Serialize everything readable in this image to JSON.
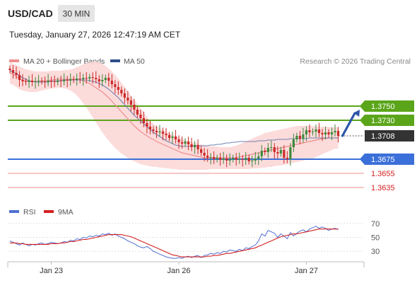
{
  "header": {
    "symbol": "USD/CAD",
    "timeframe": "30 MIN",
    "timestamp": "Tuesday, January 27, 2026 12:47:19 AM CET"
  },
  "legend": {
    "ma20_bb": "MA 20 + Bollinger Bands",
    "ma50": "MA 50",
    "copyright": "Research © 2026 Trading Central",
    "rsi": "RSI",
    "rsi_ma": "9MA"
  },
  "colors": {
    "resistance": "#5aa51a",
    "support": "#3b6fd9",
    "support_soft": "#ee8e8e",
    "bollinger_fill": "#fcd7d7",
    "ma20": "#ee8e8e",
    "ma50": "#6f82b0",
    "candle_up": "#3d8a3d",
    "candle_down": "#c92a2a",
    "arrow": "#2d57a8",
    "rsi": "#4f6fd1",
    "rsi_ma": "#d42020",
    "last_price_bg": "#333333"
  },
  "chart_data": [
    {
      "type": "candlestick",
      "title": "USD/CAD",
      "ylim": [
        1.36,
        1.38
      ],
      "x_ticks": [
        "Jan 23",
        "Jan 26",
        "Jan 27"
      ],
      "x_tick_index": [
        13,
        53,
        93
      ],
      "levels": [
        {
          "value": 1.375,
          "label": "1.3750",
          "kind": "resistance"
        },
        {
          "value": 1.373,
          "label": "1.3730",
          "kind": "resistance"
        },
        {
          "value": 1.3708,
          "label": "1.3708",
          "kind": "last"
        },
        {
          "value": 1.3675,
          "label": "1.3675",
          "kind": "support"
        },
        {
          "value": 1.3655,
          "label": "1.3655",
          "kind": "support_soft"
        },
        {
          "value": 1.3635,
          "label": "1.3635",
          "kind": "support_soft"
        }
      ],
      "closes": [
        1.3801,
        1.3797,
        1.3794,
        1.3787,
        1.3785,
        1.3784,
        1.3786,
        1.3784,
        1.3785,
        1.3786,
        1.3785,
        1.3784,
        1.3786,
        1.3785,
        1.3784,
        1.3786,
        1.3785,
        1.3787,
        1.3786,
        1.3788,
        1.3787,
        1.3789,
        1.3788,
        1.379,
        1.3789,
        1.3791,
        1.379,
        1.3788,
        1.3785,
        1.3787,
        1.379,
        1.3786,
        1.3781,
        1.3777,
        1.3773,
        1.3768,
        1.3762,
        1.3758,
        1.3752,
        1.3745,
        1.3738,
        1.3733,
        1.3726,
        1.3721,
        1.3717,
        1.3715,
        1.3713,
        1.3714,
        1.3711,
        1.3709,
        1.3705,
        1.3707,
        1.3703,
        1.3699,
        1.3697,
        1.37,
        1.3696,
        1.3692,
        1.3695,
        1.3689,
        1.3684,
        1.368,
        1.3677,
        1.3678,
        1.3675,
        1.3677,
        1.3674,
        1.3676,
        1.3673,
        1.3675,
        1.3677,
        1.3674,
        1.3675,
        1.3674,
        1.3677,
        1.3672,
        1.3673,
        1.3676,
        1.3679,
        1.3687,
        1.3685,
        1.3691,
        1.3692,
        1.3685,
        1.3683,
        1.3688,
        1.3677,
        1.3675,
        1.3692,
        1.3703,
        1.3708,
        1.3704,
        1.371,
        1.3716,
        1.3713,
        1.3714,
        1.3717,
        1.3712,
        1.371,
        1.3713,
        1.371,
        1.3713,
        1.3715,
        1.3708
      ],
      "ma50": [
        1.38,
        1.3798,
        1.3796,
        1.3793,
        1.379,
        1.3788,
        1.3786,
        1.3785,
        1.3784,
        1.3784,
        1.3784,
        1.3784,
        1.3784,
        1.3785,
        1.3785,
        1.3786,
        1.3786,
        1.3787,
        1.3787,
        1.3787,
        1.3787,
        1.3787,
        1.3787,
        1.3787,
        1.3787,
        1.3786,
        1.3785,
        1.3784,
        1.3782,
        1.378,
        1.3777,
        1.3774,
        1.377,
        1.3766,
        1.3762,
        1.3757,
        1.3752,
        1.3747,
        1.3742,
        1.3737,
        1.3733,
        1.3729,
        1.3725,
        1.3721,
        1.3717,
        1.3713,
        1.371,
        1.3707,
        1.3704,
        1.3701,
        1.3699,
        1.3697,
        1.3695,
        1.3694,
        1.3693,
        1.3693,
        1.3693,
        1.3694,
        1.3694,
        1.3694,
        1.3694,
        1.3694,
        1.3694,
        1.3695,
        1.3695,
        1.3696,
        1.3696,
        1.3697,
        1.3698,
        1.3698,
        1.3699,
        1.3699,
        1.37,
        1.37,
        1.37,
        1.37,
        1.37,
        1.37,
        1.3701,
        1.3701,
        1.3701,
        1.3702,
        1.3702,
        1.3702,
        1.3703,
        1.3703,
        1.3703,
        1.3703,
        1.3704,
        1.3704,
        1.3704,
        1.3704,
        1.3704,
        1.3704,
        1.3705,
        1.3705,
        1.3705,
        1.3705,
        1.3705,
        1.3705,
        1.3705,
        1.3705,
        1.3705,
        1.3705
      ],
      "ma20": [
        1.3797,
        1.3795,
        1.3792,
        1.3789,
        1.3787,
        1.3786,
        1.3785,
        1.3785,
        1.3785,
        1.3785,
        1.3785,
        1.3786,
        1.3786,
        1.3787,
        1.3787,
        1.3788,
        1.3788,
        1.3788,
        1.3788,
        1.3788,
        1.3788,
        1.3788,
        1.3787,
        1.3786,
        1.3784,
        1.3782,
        1.3779,
        1.3776,
        1.3773,
        1.377,
        1.3766,
        1.3762,
        1.3757,
        1.3752,
        1.3747,
        1.3742,
        1.3737,
        1.3732,
        1.3727,
        1.3722,
        1.3718,
        1.3714,
        1.3711,
        1.3708,
        1.3705,
        1.3703,
        1.37,
        1.3698,
        1.3696,
        1.3694,
        1.3692,
        1.369,
        1.3688,
        1.3686,
        1.3684,
        1.3683,
        1.3682,
        1.3681,
        1.368,
        1.3679,
        1.3678,
        1.3677,
        1.3677,
        1.3677,
        1.3677,
        1.3677,
        1.3677,
        1.3677,
        1.3677,
        1.3677,
        1.3677,
        1.3677,
        1.3678,
        1.3679,
        1.368,
        1.3681,
        1.3682,
        1.3683,
        1.3684,
        1.3685,
        1.3686,
        1.3687,
        1.3688,
        1.3689,
        1.369,
        1.3691,
        1.3692,
        1.3693,
        1.3694,
        1.3695,
        1.3696,
        1.3697,
        1.3698,
        1.3699,
        1.37,
        1.3701,
        1.3702,
        1.3703,
        1.3704,
        1.3704,
        1.3705,
        1.3705,
        1.3705,
        1.3705
      ],
      "bb_upper": [
        1.3812,
        1.381,
        1.3808,
        1.3806,
        1.3804,
        1.3802,
        1.3801,
        1.38,
        1.3799,
        1.3799,
        1.3799,
        1.3799,
        1.3799,
        1.38,
        1.38,
        1.38,
        1.38,
        1.3801,
        1.3801,
        1.3802,
        1.3803,
        1.3805,
        1.3807,
        1.3809,
        1.3811,
        1.3812,
        1.3813,
        1.3813,
        1.3812,
        1.381,
        1.3807,
        1.3803,
        1.3799,
        1.3794,
        1.3789,
        1.3783,
        1.3777,
        1.3771,
        1.3765,
        1.3759,
        1.3753,
        1.3747,
        1.3741,
        1.3735,
        1.3729,
        1.3725,
        1.3722,
        1.3719,
        1.3716,
        1.3714,
        1.3712,
        1.371,
        1.3708,
        1.3706,
        1.3704,
        1.3702,
        1.37,
        1.3699,
        1.3698,
        1.3697,
        1.3696,
        1.3695,
        1.3694,
        1.3693,
        1.3693,
        1.3693,
        1.3692,
        1.3692,
        1.3692,
        1.3692,
        1.3693,
        1.3694,
        1.3696,
        1.3698,
        1.37,
        1.3702,
        1.3704,
        1.3706,
        1.3708,
        1.371,
        1.3712,
        1.3713,
        1.3714,
        1.3715,
        1.3716,
        1.3717,
        1.3718,
        1.3719,
        1.372,
        1.3721,
        1.3722,
        1.3722,
        1.3722,
        1.3722,
        1.3722,
        1.3722,
        1.3721,
        1.3721,
        1.3721,
        1.3721,
        1.3721,
        1.372,
        1.372,
        1.372
      ],
      "bb_lower": [
        1.3782,
        1.378,
        1.3777,
        1.3774,
        1.3772,
        1.3771,
        1.377,
        1.377,
        1.377,
        1.3771,
        1.3772,
        1.3773,
        1.3774,
        1.3775,
        1.3775,
        1.3776,
        1.3776,
        1.3775,
        1.3774,
        1.3772,
        1.3769,
        1.3765,
        1.376,
        1.3754,
        1.3748,
        1.3741,
        1.3734,
        1.3727,
        1.372,
        1.3713,
        1.3707,
        1.3701,
        1.3696,
        1.3691,
        1.3687,
        1.3683,
        1.368,
        1.3677,
        1.3674,
        1.3672,
        1.367,
        1.3668,
        1.3667,
        1.3666,
        1.3665,
        1.3664,
        1.3664,
        1.3663,
        1.3663,
        1.3662,
        1.3662,
        1.3661,
        1.3661,
        1.366,
        1.366,
        1.366,
        1.366,
        1.366,
        1.366,
        1.366,
        1.366,
        1.366,
        1.366,
        1.3661,
        1.3661,
        1.3661,
        1.3661,
        1.3661,
        1.3661,
        1.3661,
        1.3661,
        1.3661,
        1.3661,
        1.3661,
        1.3661,
        1.3661,
        1.3662,
        1.3662,
        1.3662,
        1.3663,
        1.3663,
        1.3664,
        1.3664,
        1.3665,
        1.3666,
        1.3666,
        1.3667,
        1.3668,
        1.3669,
        1.367,
        1.3671,
        1.3672,
        1.3673,
        1.3674,
        1.3675,
        1.3676,
        1.3678,
        1.368,
        1.3682,
        1.3684,
        1.3686,
        1.3688,
        1.369,
        1.369
      ],
      "forecast_arrow": {
        "from": 1.3708,
        "to": 1.3745
      }
    },
    {
      "type": "line",
      "title": "RSI",
      "ylim": [
        15,
        80
      ],
      "y_ticks": [
        70,
        50,
        30
      ],
      "series": [
        {
          "name": "RSI",
          "values": [
            45,
            43,
            41,
            39,
            42,
            40,
            38,
            40,
            39,
            41,
            42,
            40,
            41,
            43,
            42,
            41,
            42,
            44,
            43,
            46,
            45,
            48,
            47,
            50,
            49,
            52,
            51,
            53,
            52,
            55,
            54,
            56,
            53,
            55,
            52,
            50,
            48,
            45,
            43,
            41,
            38,
            36,
            35,
            37,
            34,
            30,
            28,
            26,
            24,
            22,
            21,
            20,
            20,
            21,
            20,
            22,
            23,
            21,
            23,
            24,
            21,
            24,
            25,
            27,
            26,
            28,
            27,
            30,
            29,
            32,
            31,
            30,
            33,
            31,
            35,
            34,
            37,
            39,
            45,
            55,
            52,
            60,
            58,
            56,
            50,
            55,
            52,
            48,
            57,
            52,
            56,
            59,
            61,
            58,
            62,
            64,
            66,
            63,
            65,
            63,
            60,
            62,
            63,
            61
          ]
        },
        {
          "name": "9MA",
          "values": [
            42,
            42,
            42,
            41,
            41,
            40,
            40,
            40,
            40,
            40,
            40,
            40,
            40,
            41,
            41,
            41,
            42,
            42,
            43,
            44,
            44,
            45,
            46,
            47,
            47,
            48,
            49,
            50,
            51,
            52,
            53,
            54,
            54,
            54,
            54,
            54,
            53,
            52,
            51,
            49,
            47,
            45,
            43,
            41,
            39,
            37,
            35,
            33,
            31,
            29,
            27,
            25,
            24,
            23,
            22,
            22,
            22,
            22,
            22,
            22,
            22,
            22,
            23,
            23,
            24,
            24,
            25,
            26,
            27,
            27,
            28,
            29,
            30,
            31,
            32,
            33,
            34,
            35,
            37,
            39,
            41,
            43,
            45,
            47,
            49,
            51,
            52,
            53,
            54,
            55,
            55,
            56,
            57,
            58,
            59,
            60,
            61,
            62,
            62,
            62,
            62,
            62,
            62,
            62
          ]
        }
      ]
    }
  ]
}
